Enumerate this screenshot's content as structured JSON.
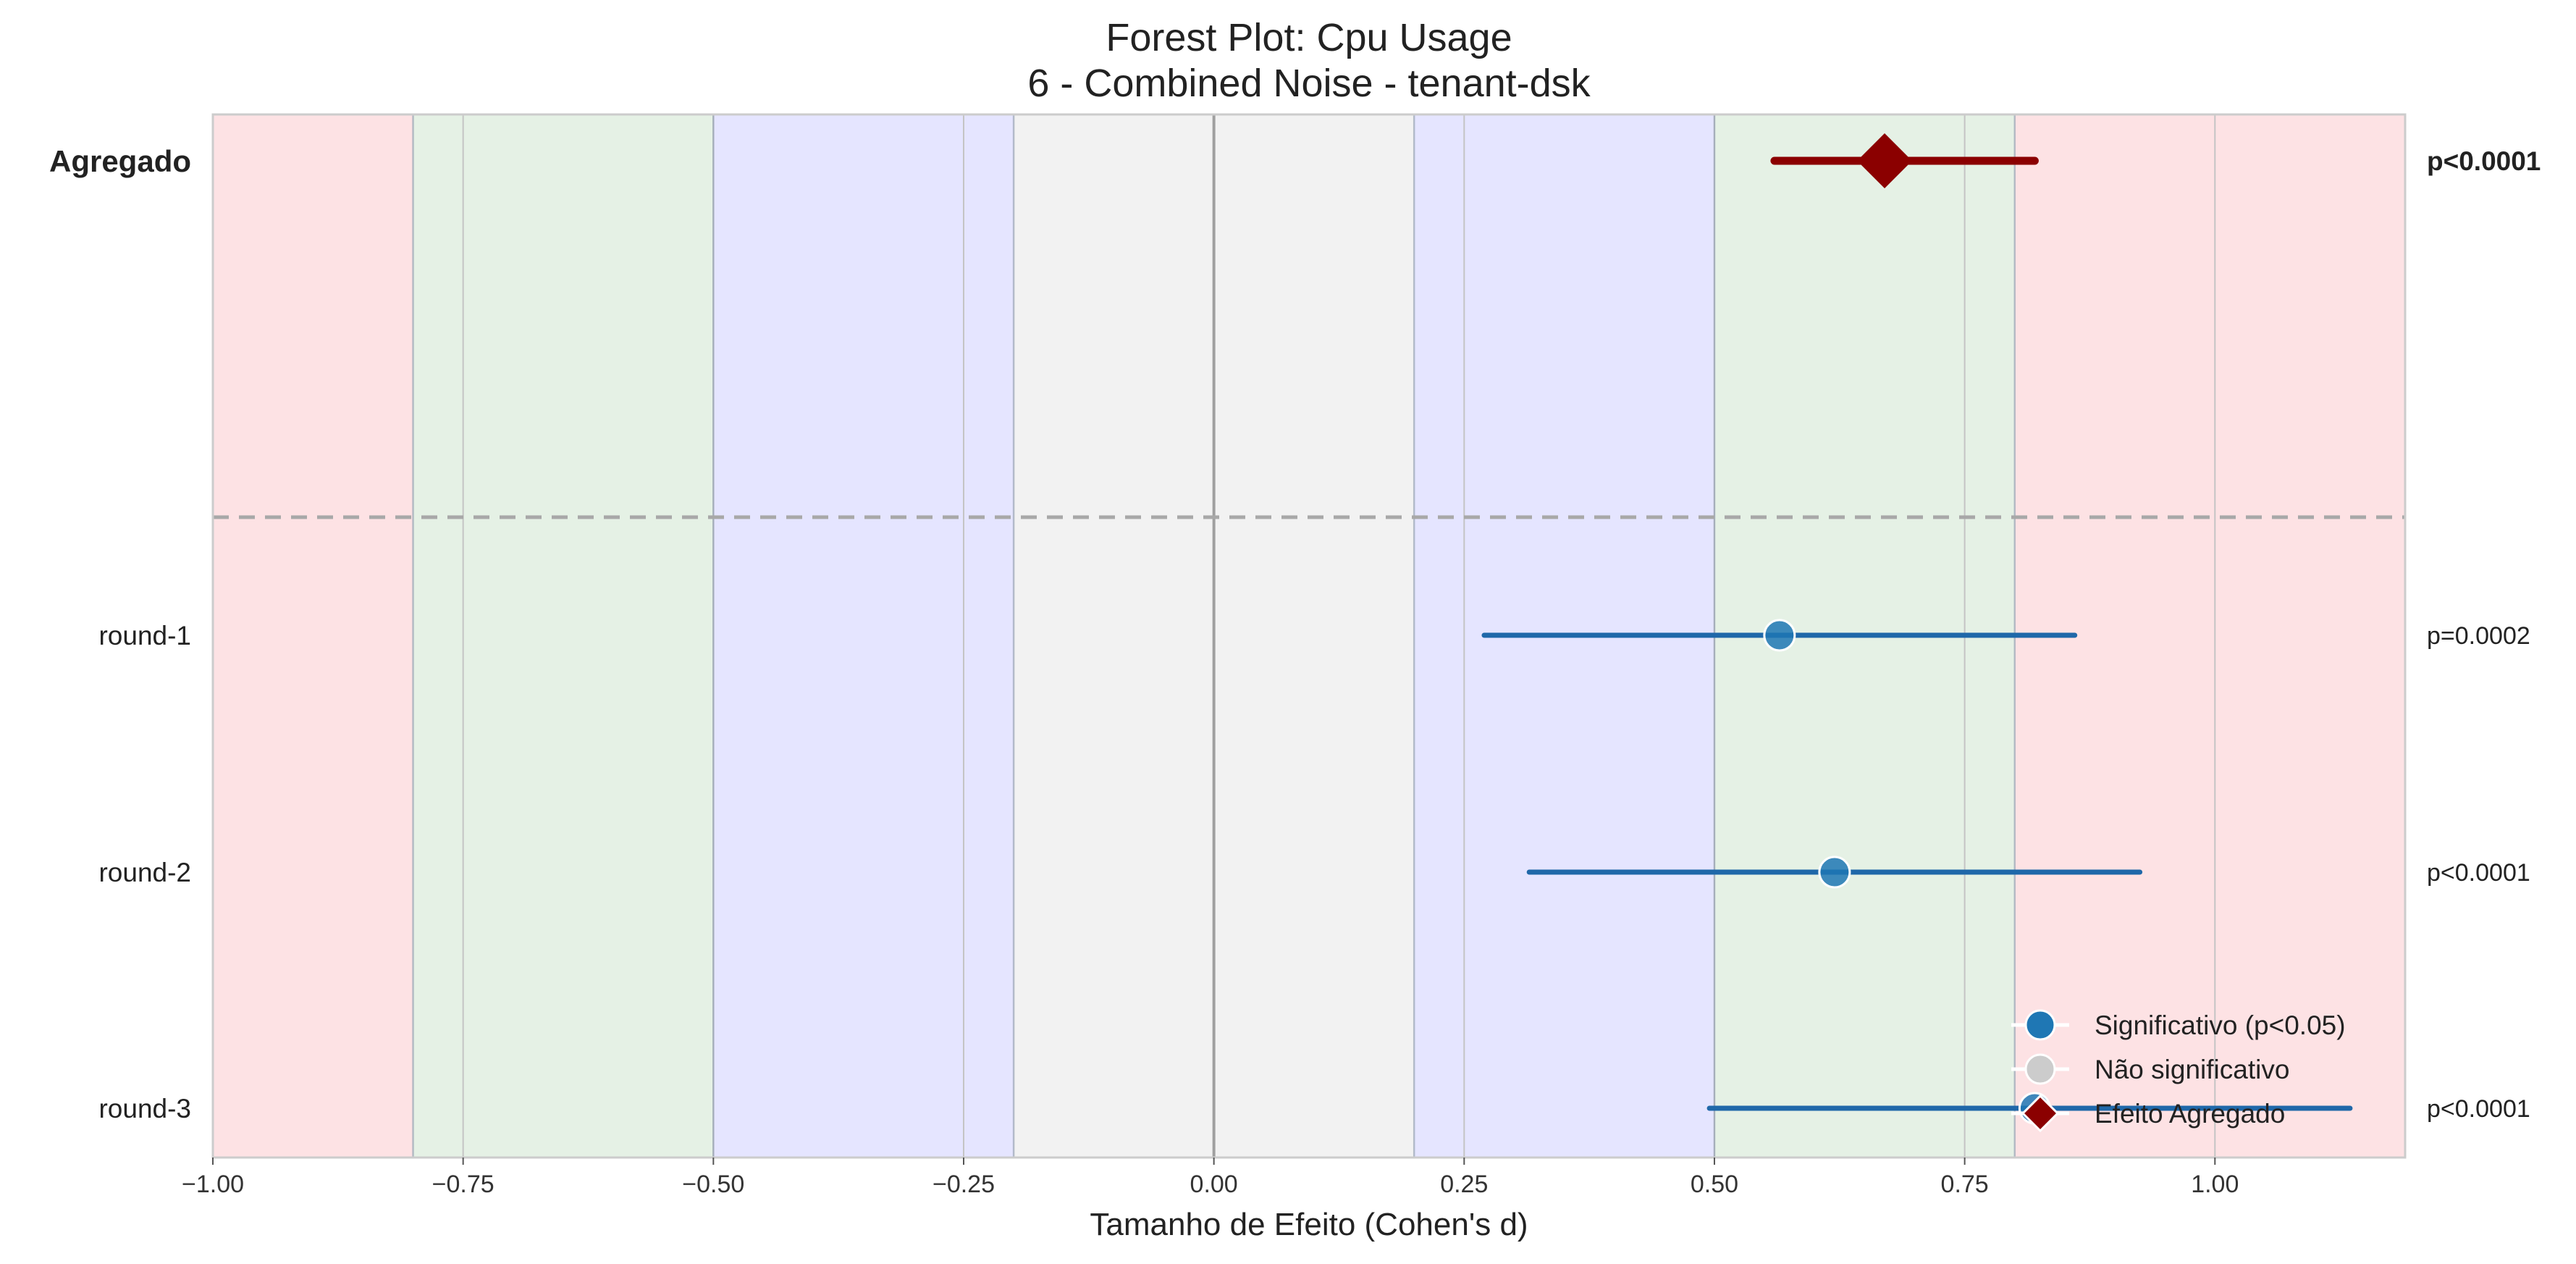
{
  "chart_data": {
    "type": "forest",
    "title_line1": "Forest Plot: Cpu Usage",
    "title_line2": "6 - Combined Noise - tenant-dsk",
    "xlabel": "Tamanho de Efeito (Cohen's d)",
    "xlim": [
      -1.0,
      1.19
    ],
    "x_ticks": [
      -1.0,
      -0.75,
      -0.5,
      -0.25,
      0.0,
      0.25,
      0.5,
      0.75,
      1.0
    ],
    "x_tick_labels": [
      "−1.00",
      "−0.75",
      "−0.50",
      "−0.25",
      "0.00",
      "0.25",
      "0.50",
      "0.75",
      "1.00"
    ],
    "effect_bands": [
      {
        "from": -1.0,
        "to": -0.8,
        "category": "large",
        "color": "#fde2e4"
      },
      {
        "from": -0.8,
        "to": -0.5,
        "category": "medium",
        "color": "#e5f1e5"
      },
      {
        "from": -0.5,
        "to": -0.2,
        "category": "small",
        "color": "#e5e5ff"
      },
      {
        "from": -0.2,
        "to": 0.2,
        "category": "negligible",
        "color": "#f2f2f2"
      },
      {
        "from": 0.2,
        "to": 0.5,
        "category": "small",
        "color": "#e5e5ff"
      },
      {
        "from": 0.5,
        "to": 0.8,
        "category": "medium",
        "color": "#e5f1e5"
      },
      {
        "from": 0.8,
        "to": 1.19,
        "category": "large",
        "color": "#fde2e4"
      }
    ],
    "aggregate": {
      "label": "Agregado",
      "effect": 0.67,
      "ci_low": 0.56,
      "ci_high": 0.82,
      "p_label": "p<0.0001",
      "color": "#8b0000"
    },
    "rounds": [
      {
        "label": "round-1",
        "effect": 0.565,
        "ci_low": 0.27,
        "ci_high": 0.86,
        "p_label": "p=0.0002",
        "significant": true
      },
      {
        "label": "round-2",
        "effect": 0.62,
        "ci_low": 0.315,
        "ci_high": 0.925,
        "p_label": "p<0.0001",
        "significant": true
      },
      {
        "label": "round-3",
        "effect": 0.82,
        "ci_low": 0.495,
        "ci_high": 1.135,
        "p_label": "p<0.0001",
        "significant": true
      }
    ],
    "colors": {
      "significant": "#1f77b4",
      "not_significant": "#cccccc",
      "aggregate": "#8b0000"
    },
    "legend": {
      "placement": "lower-right",
      "items": [
        {
          "label": "Significativo (p<0.05)",
          "marker": "circle",
          "color": "#1f77b4"
        },
        {
          "label": "Não significativo",
          "marker": "circle",
          "color": "#cccccc"
        },
        {
          "label": "Efeito Agregado",
          "marker": "diamond",
          "color": "#8b0000"
        }
      ]
    }
  }
}
